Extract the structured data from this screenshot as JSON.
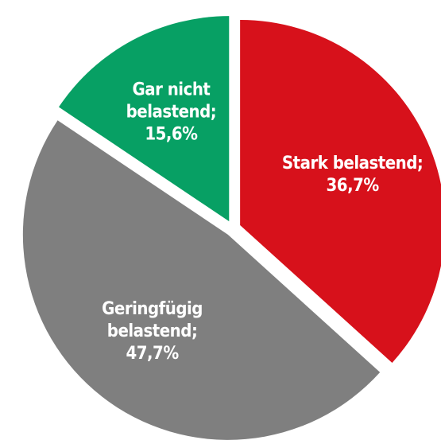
{
  "chart_data": {
    "type": "pie",
    "categories": [
      "Stark belastend;",
      "Geringfügig belastend;",
      "Gar nicht belastend;"
    ],
    "values": [
      36.7,
      47.7,
      15.6
    ],
    "value_labels": [
      "36,7%",
      "47,7%",
      "15,6%"
    ],
    "colors": [
      "#d7111b",
      "#7f7f7f",
      "#07a064"
    ]
  }
}
